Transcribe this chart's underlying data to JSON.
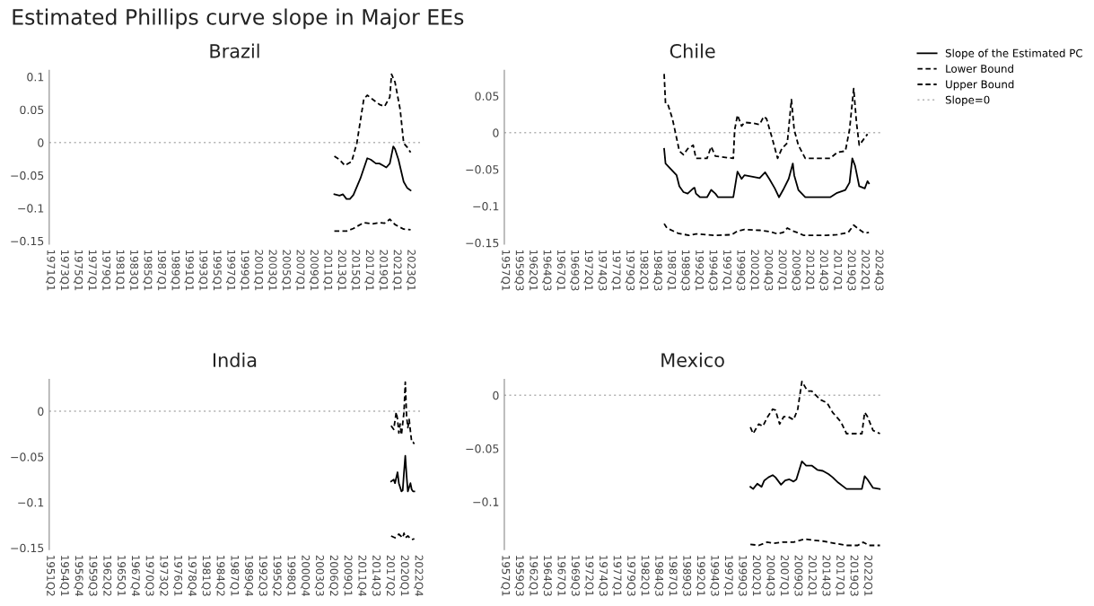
{
  "chart_data": [
    {
      "type": "line",
      "title": "Brazil",
      "annotations": [
        "Estimated Phillips curve slope in Major EEs"
      ],
      "legend": "top right",
      "xlim": [
        "1970-11-15",
        "2024-05-15"
      ],
      "ylim": [
        -0.155,
        0.11
      ],
      "xticks": [
        {
          "value": "1971-01",
          "label": "1971Q1"
        },
        {
          "value": "1973-01",
          "label": "1973Q1"
        },
        {
          "value": "1975-01",
          "label": "1975Q1"
        },
        {
          "value": "1977-01",
          "label": "1977Q1"
        },
        {
          "value": "1979-01",
          "label": "1979Q1"
        },
        {
          "value": "1981-01",
          "label": "1981Q1"
        },
        {
          "value": "1983-01",
          "label": "1983Q1"
        },
        {
          "value": "1985-01",
          "label": "1985Q1"
        },
        {
          "value": "1987-01",
          "label": "1987Q1"
        },
        {
          "value": "1989-01",
          "label": "1989Q1"
        },
        {
          "value": "1991-01",
          "label": "1991Q1"
        },
        {
          "value": "1993-01",
          "label": "1993Q1"
        },
        {
          "value": "1995-01",
          "label": "1995Q1"
        },
        {
          "value": "1997-01",
          "label": "1997Q1"
        },
        {
          "value": "1999-01",
          "label": "1999Q1"
        },
        {
          "value": "2001-01",
          "label": "2001Q1"
        },
        {
          "value": "2003-01",
          "label": "2003Q1"
        },
        {
          "value": "2005-01",
          "label": "2005Q1"
        },
        {
          "value": "2007-01",
          "label": "2007Q1"
        },
        {
          "value": "2009-01",
          "label": "2009Q1"
        },
        {
          "value": "2011-01",
          "label": "2011Q1"
        },
        {
          "value": "2013-01",
          "label": "2013Q1"
        },
        {
          "value": "2015-01",
          "label": "2015Q1"
        },
        {
          "value": "2017-01",
          "label": "2017Q1"
        },
        {
          "value": "2019-01",
          "label": "2019Q1"
        },
        {
          "value": "2021-01",
          "label": "2021Q1"
        },
        {
          "value": "2023-01",
          "label": "2023Q1"
        }
      ],
      "yticks": [
        {
          "value": -0.15,
          "label": "−0.15"
        },
        {
          "value": -0.1,
          "label": "−0.1"
        },
        {
          "value": -0.05,
          "label": "−0.05"
        },
        0,
        0.05,
        0.1
      ],
      "ref_lines": [
        {
          "axis": "y",
          "value": 0,
          "label": "Slope=0",
          "color": "#b3b3b3",
          "line_style": "dotted"
        }
      ],
      "series": [
        {
          "name": "Slope of the Estimated PC",
          "color": "#000000",
          "line_style": "solid",
          "x": [
            "2012-01",
            "2012-10",
            "2013-04",
            "2013-10",
            "2014-04",
            "2014-10",
            "2015-10",
            "2016-10",
            "2017-04",
            "2018-01",
            "2018-07",
            "2019-01",
            "2019-07",
            "2020-01",
            "2020-07",
            "2020-10",
            "2021-04",
            "2022-01",
            "2022-07",
            "2023-01"
          ],
          "values": [
            -0.079,
            -0.081,
            -0.079,
            -0.086,
            -0.086,
            -0.08,
            -0.055,
            -0.024,
            -0.026,
            -0.032,
            -0.032,
            -0.035,
            -0.038,
            -0.032,
            -0.006,
            -0.01,
            -0.026,
            -0.06,
            -0.069,
            -0.073
          ]
        },
        {
          "name": "Lower Bound",
          "color": "#000000",
          "line_style": "dashed",
          "x": [
            "2012-01",
            "2013-10",
            "2014-10",
            "2016-04",
            "2017-07",
            "2018-07",
            "2019-04",
            "2020-01",
            "2020-10",
            "2022-01",
            "2023-01"
          ],
          "values": [
            -0.135,
            -0.135,
            -0.131,
            -0.122,
            -0.124,
            -0.122,
            -0.123,
            -0.117,
            -0.125,
            -0.132,
            -0.133
          ]
        },
        {
          "name": "Upper Bound",
          "color": "#000000",
          "line_style": "dashed",
          "x": [
            "2012-01",
            "2012-10",
            "2013-07",
            "2014-07",
            "2015-04",
            "2016-04",
            "2016-10",
            "2017-10",
            "2018-07",
            "2019-04",
            "2020-01",
            "2020-04",
            "2020-10",
            "2021-07",
            "2022-01",
            "2022-07",
            "2023-01"
          ],
          "values": [
            -0.021,
            -0.026,
            -0.035,
            -0.029,
            -0.001,
            0.066,
            0.072,
            0.064,
            0.058,
            0.055,
            0.069,
            0.104,
            0.092,
            0.05,
            -0.001,
            -0.007,
            -0.015
          ]
        }
      ]
    },
    {
      "type": "line",
      "title": "Chile",
      "xlim": [
        "1956-11-15",
        "2024-11-15"
      ],
      "ylim": [
        -0.152,
        0.085
      ],
      "xticks": [
        {
          "value": "1957-01",
          "label": "1957Q1"
        },
        {
          "value": "1959-07",
          "label": "1959Q3"
        },
        {
          "value": "1962-01",
          "label": "1962Q1"
        },
        {
          "value": "1964-07",
          "label": "1964Q3"
        },
        {
          "value": "1967-01",
          "label": "1967Q1"
        },
        {
          "value": "1969-07",
          "label": "1969Q3"
        },
        {
          "value": "1972-01",
          "label": "1972Q1"
        },
        {
          "value": "1974-07",
          "label": "1974Q3"
        },
        {
          "value": "1977-01",
          "label": "1977Q1"
        },
        {
          "value": "1979-07",
          "label": "1979Q3"
        },
        {
          "value": "1982-01",
          "label": "1982Q1"
        },
        {
          "value": "1984-07",
          "label": "1984Q3"
        },
        {
          "value": "1987-01",
          "label": "1987Q1"
        },
        {
          "value": "1989-07",
          "label": "1989Q3"
        },
        {
          "value": "1992-01",
          "label": "1992Q1"
        },
        {
          "value": "1994-07",
          "label": "1994Q3"
        },
        {
          "value": "1997-01",
          "label": "1997Q1"
        },
        {
          "value": "1999-07",
          "label": "1999Q3"
        },
        {
          "value": "2002-01",
          "label": "2002Q1"
        },
        {
          "value": "2004-07",
          "label": "2004Q3"
        },
        {
          "value": "2007-01",
          "label": "2007Q1"
        },
        {
          "value": "2009-07",
          "label": "2009Q3"
        },
        {
          "value": "2012-01",
          "label": "2012Q1"
        },
        {
          "value": "2014-07",
          "label": "2014Q3"
        },
        {
          "value": "2017-01",
          "label": "2017Q1"
        },
        {
          "value": "2019-07",
          "label": "2019Q3"
        },
        {
          "value": "2022-01",
          "label": "2022Q1"
        },
        {
          "value": "2024-07",
          "label": "2024Q3"
        }
      ],
      "yticks": [
        {
          "value": -0.15,
          "label": "−0.15"
        },
        {
          "value": -0.1,
          "label": "−0.1"
        },
        {
          "value": -0.05,
          "label": "−0.05"
        },
        0,
        0.05
      ],
      "ref_lines": [
        {
          "axis": "y",
          "value": 0,
          "color": "#b3b3b3",
          "line_style": "dotted"
        }
      ],
      "series": [
        {
          "color": "#000000",
          "line_style": "solid",
          "x": [
            "1985-10",
            "1986-01",
            "1987-01",
            "1988-01",
            "1988-07",
            "1989-04",
            "1990-01",
            "1991-01",
            "1991-04",
            "1991-07",
            "1992-04",
            "1993-07",
            "1994-04",
            "1995-01",
            "1995-07",
            "1998-04",
            "1999-01",
            "1999-10",
            "2000-04",
            "2001-10",
            "2003-01",
            "2004-01",
            "2004-10",
            "2005-10",
            "2006-07",
            "2007-04",
            "2008-04",
            "2009-01",
            "2009-04",
            "2010-01",
            "2011-04",
            "2015-10",
            "2017-01",
            "2018-07",
            "2019-04",
            "2019-10",
            "2020-04",
            "2021-01",
            "2022-01",
            "2022-07",
            "2022-10"
          ],
          "values": [
            -0.022,
            -0.042,
            -0.05,
            -0.058,
            -0.073,
            -0.081,
            -0.083,
            -0.076,
            -0.075,
            -0.083,
            -0.088,
            -0.088,
            -0.078,
            -0.083,
            -0.088,
            -0.088,
            -0.053,
            -0.063,
            -0.058,
            -0.06,
            -0.062,
            -0.054,
            -0.063,
            -0.076,
            -0.088,
            -0.078,
            -0.063,
            -0.042,
            -0.058,
            -0.078,
            -0.088,
            -0.088,
            -0.082,
            -0.078,
            -0.068,
            -0.035,
            -0.045,
            -0.073,
            -0.076,
            -0.066,
            -0.069
          ]
        },
        {
          "color": "#000000",
          "line_style": "dashed",
          "x": [
            "1985-10",
            "1986-04",
            "1988-04",
            "1990-04",
            "1991-07",
            "1995-01",
            "1998-01",
            "1999-01",
            "2000-04",
            "2003-01",
            "2005-01",
            "2006-04",
            "2007-04",
            "2008-01",
            "2009-01",
            "2009-10",
            "2011-01",
            "2015-01",
            "2017-01",
            "2019-01",
            "2020-01",
            "2021-01",
            "2022-01",
            "2022-10"
          ],
          "values": [
            -0.124,
            -0.13,
            -0.137,
            -0.14,
            -0.138,
            -0.14,
            -0.139,
            -0.134,
            -0.132,
            -0.133,
            -0.135,
            -0.138,
            -0.136,
            -0.13,
            -0.134,
            -0.136,
            -0.14,
            -0.14,
            -0.139,
            -0.136,
            -0.126,
            -0.132,
            -0.137,
            -0.136
          ]
        },
        {
          "color": "#000000",
          "line_style": "dashed",
          "x": [
            "1985-10",
            "1986-01",
            "1986-07",
            "1987-04",
            "1988-07",
            "1989-04",
            "1990-01",
            "1991-01",
            "1991-07",
            "1993-07",
            "1994-04",
            "1995-01",
            "1998-04",
            "1998-07",
            "1999-01",
            "1999-10",
            "2000-04",
            "2001-10",
            "2003-01",
            "2003-10",
            "2004-04",
            "2005-04",
            "2006-04",
            "2007-01",
            "2008-01",
            "2008-10",
            "2009-04",
            "2010-01",
            "2011-04",
            "2015-10",
            "2017-01",
            "2018-07",
            "2019-04",
            "2020-01",
            "2020-07",
            "2021-01",
            "2022-01",
            "2022-07"
          ],
          "values": [
            0.08,
            0.039,
            0.037,
            0.019,
            -0.025,
            -0.03,
            -0.022,
            -0.017,
            -0.035,
            -0.035,
            -0.019,
            -0.032,
            -0.035,
            0.004,
            0.024,
            0.009,
            0.014,
            0.013,
            0.011,
            0.022,
            0.019,
            -0.007,
            -0.035,
            -0.022,
            -0.014,
            0.045,
            0.004,
            -0.017,
            -0.035,
            -0.035,
            -0.027,
            -0.025,
            0.004,
            0.06,
            0.014,
            -0.017,
            -0.007,
            -0.002
          ]
        }
      ]
    },
    {
      "type": "line",
      "title": "India",
      "xlim": [
        "1951-02-15",
        "2023-02-15"
      ],
      "ylim": [
        -0.152,
        0.035
      ],
      "xticks": [
        {
          "value": "1951-04",
          "label": "1951Q2"
        },
        {
          "value": "1954-01",
          "label": "1954Q1"
        },
        {
          "value": "1956-10",
          "label": "1956Q4"
        },
        {
          "value": "1959-07",
          "label": "1959Q3"
        },
        {
          "value": "1962-04",
          "label": "1962Q2"
        },
        {
          "value": "1965-01",
          "label": "1965Q1"
        },
        {
          "value": "1967-10",
          "label": "1967Q4"
        },
        {
          "value": "1970-07",
          "label": "1970Q3"
        },
        {
          "value": "1973-04",
          "label": "1973Q2"
        },
        {
          "value": "1976-01",
          "label": "1976Q1"
        },
        {
          "value": "1978-10",
          "label": "1978Q4"
        },
        {
          "value": "1981-07",
          "label": "1981Q3"
        },
        {
          "value": "1984-04",
          "label": "1984Q2"
        },
        {
          "value": "1987-01",
          "label": "1987Q1"
        },
        {
          "value": "1989-10",
          "label": "1989Q4"
        },
        {
          "value": "1992-07",
          "label": "1992Q3"
        },
        {
          "value": "1995-04",
          "label": "1995Q2"
        },
        {
          "value": "1998-01",
          "label": "1998Q1"
        },
        {
          "value": "2000-10",
          "label": "2000Q4"
        },
        {
          "value": "2003-07",
          "label": "2003Q3"
        },
        {
          "value": "2006-04",
          "label": "2006Q2"
        },
        {
          "value": "2009-01",
          "label": "2009Q1"
        },
        {
          "value": "2011-10",
          "label": "2011Q4"
        },
        {
          "value": "2014-07",
          "label": "2014Q3"
        },
        {
          "value": "2017-04",
          "label": "2017Q2"
        },
        {
          "value": "2020-01",
          "label": "2020Q1"
        },
        {
          "value": "2022-10",
          "label": "2022Q4"
        }
      ],
      "yticks": [
        {
          "value": -0.15,
          "label": "−0.15"
        },
        {
          "value": -0.1,
          "label": "−0.1"
        },
        {
          "value": -0.05,
          "label": "−0.05"
        },
        0
      ],
      "ref_lines": [
        {
          "axis": "y",
          "value": 0,
          "color": "#b3b3b3",
          "line_style": "dotted"
        }
      ],
      "series": [
        {
          "color": "#000000",
          "line_style": "solid",
          "x": [
            "2017-07",
            "2018-01",
            "2018-04",
            "2018-10",
            "2019-01",
            "2019-07",
            "2019-10",
            "2020-01",
            "2020-04",
            "2020-07",
            "2020-10",
            "2021-04",
            "2021-07",
            "2021-10",
            "2022-01"
          ],
          "values": [
            -0.077,
            -0.075,
            -0.079,
            -0.067,
            -0.079,
            -0.088,
            -0.087,
            -0.067,
            -0.049,
            -0.071,
            -0.088,
            -0.079,
            -0.086,
            -0.088,
            -0.088
          ]
        },
        {
          "color": "#000000",
          "line_style": "dashed",
          "x": [
            "2017-07",
            "2018-04",
            "2019-01",
            "2019-10",
            "2020-01",
            "2020-04",
            "2020-10",
            "2021-07",
            "2022-01"
          ],
          "values": [
            -0.137,
            -0.139,
            -0.135,
            -0.139,
            -0.134,
            -0.139,
            -0.137,
            -0.141,
            -0.14
          ]
        },
        {
          "color": "#000000",
          "line_style": "dashed",
          "x": [
            "2017-07",
            "2017-10",
            "2018-01",
            "2018-07",
            "2018-10",
            "2019-01",
            "2019-04",
            "2019-07",
            "2020-01",
            "2020-04",
            "2020-07",
            "2020-10",
            "2021-01",
            "2021-04",
            "2021-07",
            "2021-10",
            "2022-01"
          ],
          "values": [
            -0.016,
            -0.018,
            -0.02,
            -0.001,
            -0.009,
            -0.024,
            -0.014,
            -0.026,
            -0.001,
            0.032,
            -0.005,
            -0.018,
            -0.009,
            -0.022,
            -0.034,
            -0.034,
            -0.036
          ]
        }
      ]
    },
    {
      "type": "line",
      "title": "Mexico",
      "xlim": [
        "1956-11-15",
        "2024-05-15"
      ],
      "ylim": [
        -0.145,
        0.015
      ],
      "xticks": [
        {
          "value": "1957-01",
          "label": "1957Q1"
        },
        {
          "value": "1959-07",
          "label": "1959Q3"
        },
        {
          "value": "1962-01",
          "label": "1962Q1"
        },
        {
          "value": "1964-07",
          "label": "1964Q3"
        },
        {
          "value": "1967-01",
          "label": "1967Q1"
        },
        {
          "value": "1969-07",
          "label": "1969Q3"
        },
        {
          "value": "1972-01",
          "label": "1972Q1"
        },
        {
          "value": "1974-07",
          "label": "1974Q3"
        },
        {
          "value": "1977-01",
          "label": "1977Q1"
        },
        {
          "value": "1979-07",
          "label": "1979Q3"
        },
        {
          "value": "1982-01",
          "label": "1982Q1"
        },
        {
          "value": "1984-07",
          "label": "1984Q3"
        },
        {
          "value": "1987-01",
          "label": "1987Q1"
        },
        {
          "value": "1989-07",
          "label": "1989Q3"
        },
        {
          "value": "1992-01",
          "label": "1992Q1"
        },
        {
          "value": "1994-07",
          "label": "1994Q3"
        },
        {
          "value": "1997-01",
          "label": "1997Q1"
        },
        {
          "value": "1999-07",
          "label": "1999Q3"
        },
        {
          "value": "2002-01",
          "label": "2002Q1"
        },
        {
          "value": "2004-07",
          "label": "2004Q3"
        },
        {
          "value": "2007-01",
          "label": "2007Q1"
        },
        {
          "value": "2009-07",
          "label": "2009Q3"
        },
        {
          "value": "2012-01",
          "label": "2012Q1"
        },
        {
          "value": "2014-07",
          "label": "2014Q3"
        },
        {
          "value": "2017-01",
          "label": "2017Q1"
        },
        {
          "value": "2019-07",
          "label": "2019Q3"
        },
        {
          "value": "2022-01",
          "label": "2022Q1"
        }
      ],
      "yticks": [
        {
          "value": -0.1,
          "label": "−0.1"
        },
        {
          "value": -0.05,
          "label": "−0.05"
        },
        0
      ],
      "ref_lines": [
        {
          "axis": "y",
          "value": 0,
          "color": "#b3b3b3",
          "line_style": "dotted"
        }
      ],
      "series": [
        {
          "color": "#000000",
          "line_style": "solid",
          "x": [
            "2001-01",
            "2001-07",
            "2002-04",
            "2003-01",
            "2003-07",
            "2004-04",
            "2005-01",
            "2005-07",
            "2006-07",
            "2007-04",
            "2008-01",
            "2008-10",
            "2009-04",
            "2010-04",
            "2011-01",
            "2012-01",
            "2013-01",
            "2014-01",
            "2015-01",
            "2015-10",
            "2016-10",
            "2018-04",
            "2021-01",
            "2021-07",
            "2022-01",
            "2023-01",
            "2024-04"
          ],
          "values": [
            -0.086,
            -0.088,
            -0.083,
            -0.086,
            -0.08,
            -0.077,
            -0.075,
            -0.077,
            -0.084,
            -0.08,
            -0.079,
            -0.081,
            -0.079,
            -0.062,
            -0.066,
            -0.066,
            -0.07,
            -0.071,
            -0.074,
            -0.077,
            -0.082,
            -0.088,
            -0.088,
            -0.076,
            -0.079,
            -0.087,
            -0.088
          ]
        },
        {
          "color": "#000000",
          "line_style": "dashed",
          "x": [
            "2001-01",
            "2002-07",
            "2004-01",
            "2005-04",
            "2006-10",
            "2008-10",
            "2010-10",
            "2012-01",
            "2014-01",
            "2016-01",
            "2018-04",
            "2020-04",
            "2021-04",
            "2022-04",
            "2024-04"
          ],
          "values": [
            -0.14,
            -0.141,
            -0.138,
            -0.139,
            -0.138,
            -0.138,
            -0.135,
            -0.136,
            -0.137,
            -0.139,
            -0.141,
            -0.141,
            -0.138,
            -0.141,
            -0.141
          ]
        },
        {
          "color": "#000000",
          "line_style": "dashed",
          "x": [
            "2001-01",
            "2001-07",
            "2002-07",
            "2003-04",
            "2004-01",
            "2005-01",
            "2005-07",
            "2006-04",
            "2007-01",
            "2007-10",
            "2008-10",
            "2009-07",
            "2010-04",
            "2011-04",
            "2012-01",
            "2013-07",
            "2014-10",
            "2015-10",
            "2017-04",
            "2018-04",
            "2021-01",
            "2021-07",
            "2022-01",
            "2023-01",
            "2024-04"
          ],
          "values": [
            -0.03,
            -0.036,
            -0.027,
            -0.029,
            -0.021,
            -0.013,
            -0.014,
            -0.027,
            -0.02,
            -0.02,
            -0.023,
            -0.013,
            0.013,
            0.004,
            0.004,
            -0.004,
            -0.007,
            -0.016,
            -0.025,
            -0.036,
            -0.036,
            -0.016,
            -0.02,
            -0.033,
            -0.036
          ]
        }
      ]
    }
  ]
}
